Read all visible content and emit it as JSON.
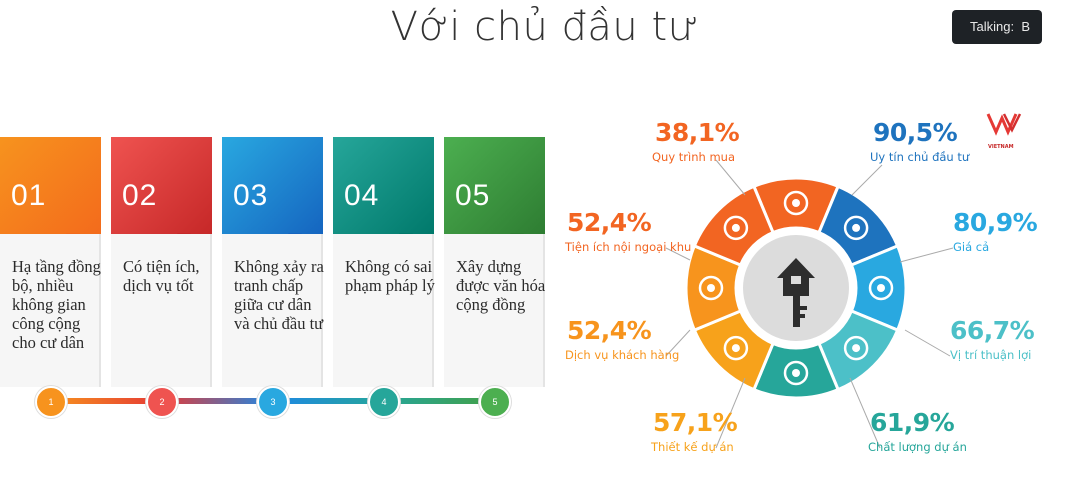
{
  "title": "Với chủ đầu tư",
  "talking_label": "Talking:",
  "talking_suffix": "B",
  "logo": {
    "text": "VIETNAM"
  },
  "steps": [
    {
      "number": "01",
      "text": "Hạ tầng đồng bộ, nhiều không gian công cộng cho cư dân",
      "dot": "1",
      "color": "#f7931e",
      "color2": "#f36b1c"
    },
    {
      "number": "02",
      "text": "Có tiện ích, dịch vụ tốt",
      "dot": "2",
      "color": "#ef5350",
      "color2": "#c62828"
    },
    {
      "number": "03",
      "text": "Không xảy ra tranh chấp giữa cư dân và chủ đầu tư",
      "dot": "3",
      "color": "#29a8e0",
      "color2": "#1565c0"
    },
    {
      "number": "04",
      "text": "Không có sai phạm pháp lý",
      "dot": "4",
      "color": "#26a69a",
      "color2": "#00796b"
    },
    {
      "number": "05",
      "text": "Xây dựng được văn hóa cộng đồng",
      "dot": "5",
      "color": "#4caf50",
      "color2": "#2e7d32"
    }
  ],
  "stats": [
    {
      "value": "38,1%",
      "label": "Quy trình mua",
      "color": "#f26522",
      "icon": "gears-icon"
    },
    {
      "value": "90,5%",
      "label": "Uy tín chủ đầu tư",
      "color": "#1e73be",
      "icon": "users-icon"
    },
    {
      "value": "80,9%",
      "label": "Giá cả",
      "color": "#29a8e0",
      "icon": "price-tag-icon"
    },
    {
      "value": "66,7%",
      "label": "Vị trí thuận lợi",
      "color": "#4cc0c8",
      "icon": "location-pin-icon"
    },
    {
      "value": "61,9%",
      "label": "Chất lượng dự án",
      "color": "#26a69a",
      "icon": "shield-check-icon"
    },
    {
      "value": "57,1%",
      "label": "Thiết kế dự án",
      "color": "#f7a21b",
      "icon": "palette-icon"
    },
    {
      "value": "52,4%",
      "label": "Dịch vụ khách hàng",
      "color": "#f7941d",
      "icon": "headset-icon"
    },
    {
      "value": "52,4%",
      "label": "Tiện ích nội ngoại khu",
      "color": "#f26522",
      "icon": "puzzle-icon"
    }
  ],
  "center_icon": "house-key-icon"
}
